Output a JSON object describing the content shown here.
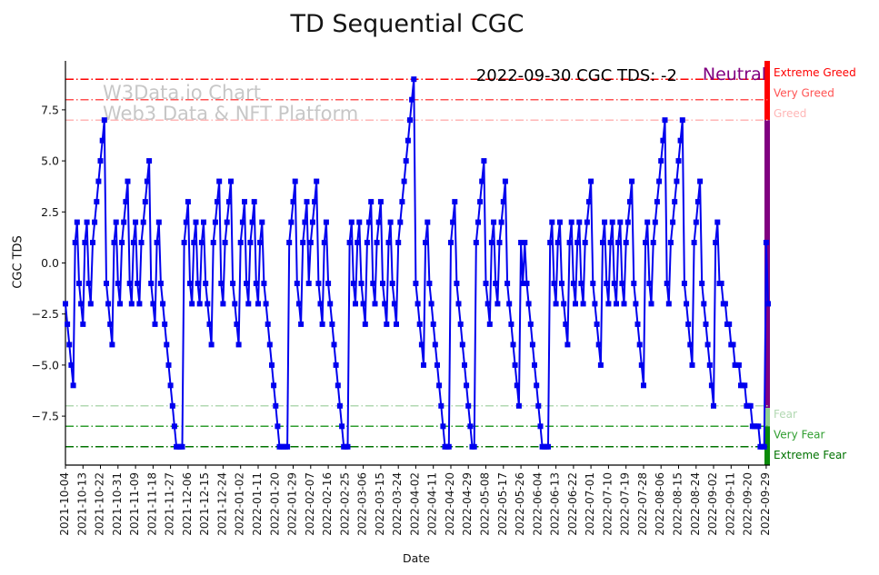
{
  "title": "TD Sequential CGC",
  "watermark": {
    "line1": "W3Data.io Chart",
    "line2": "Web3 Data & NFT Platform"
  },
  "annotation": {
    "text": "2022-09-30 CGC TDS: -2",
    "sentiment": "Neutral",
    "sentiment_color": "#800080"
  },
  "chart_data": {
    "type": "line",
    "title": "TD Sequential CGC",
    "xlabel": "Date",
    "ylabel": "CGC TDS",
    "series_name": "CGC TDS",
    "start_date": "2021-10-04",
    "end_date": "2022-09-30",
    "interval_days": 1,
    "line_color": "#0000ee",
    "marker": "square",
    "ylim": [
      -9.9,
      9.9
    ],
    "y_tick_values": [
      7.5,
      5.0,
      2.5,
      0.0,
      -2.5,
      -5.0,
      -7.5
    ],
    "y_tick_labels": [
      "7.5",
      "5.0",
      "2.5",
      "0.0",
      "−2.5",
      "−5.0",
      "−7.5"
    ],
    "x_tick_interval_days": 9,
    "x_tick_labels": [
      "2021-10-04",
      "2021-10-13",
      "2021-10-22",
      "2021-10-31",
      "2021-11-09",
      "2021-11-18",
      "2021-11-27",
      "2021-12-06",
      "2021-12-15",
      "2021-12-24",
      "2022-01-02",
      "2022-01-11",
      "2022-01-20",
      "2022-01-29",
      "2022-02-07",
      "2022-02-16",
      "2022-02-25",
      "2022-03-06",
      "2022-03-15",
      "2022-03-24",
      "2022-04-02",
      "2022-04-11",
      "2022-04-20",
      "2022-04-29",
      "2022-05-08",
      "2022-05-17",
      "2022-05-26",
      "2022-06-04",
      "2022-06-13",
      "2022-06-22",
      "2022-07-01",
      "2022-07-10",
      "2022-07-19",
      "2022-07-28",
      "2022-08-06",
      "2022-08-15",
      "2022-08-24",
      "2022-09-02",
      "2022-09-11",
      "2022-09-20",
      "2022-09-29"
    ],
    "thresholds": [
      {
        "value": 9,
        "label": "Extreme Greed",
        "color": "#fe0000"
      },
      {
        "value": 8,
        "label": "Very Greed",
        "color": "#ff5252"
      },
      {
        "value": 7,
        "label": "Greed",
        "color": "#ffb6b6"
      },
      {
        "value": -7,
        "label": "Fear",
        "color": "#b2d8b2"
      },
      {
        "value": -8,
        "label": "Very Fear",
        "color": "#2f9e2f"
      },
      {
        "value": -9,
        "label": "Extreme Fear",
        "color": "#007200"
      }
    ],
    "zone_bar": [
      {
        "from": 9.9,
        "to": 7.0,
        "color": "#fe0000"
      },
      {
        "from": 7.0,
        "to": -7.1,
        "color": "#800080"
      },
      {
        "from": -7.1,
        "to": -8.0,
        "color": "#8fcf8f"
      },
      {
        "from": -8.0,
        "to": -9.9,
        "color": "#0a8a0a"
      }
    ],
    "values": [
      -2,
      -3,
      -4,
      -5,
      -6,
      1,
      2,
      -1,
      -2,
      -3,
      1,
      2,
      -1,
      -2,
      1,
      2,
      3,
      4,
      5,
      6,
      7,
      -1,
      -2,
      -3,
      -4,
      1,
      2,
      -1,
      -2,
      1,
      2,
      3,
      4,
      -1,
      -2,
      1,
      2,
      -1,
      -2,
      1,
      2,
      3,
      4,
      5,
      -1,
      -2,
      -3,
      1,
      2,
      -1,
      -2,
      -3,
      -4,
      -5,
      -6,
      -7,
      -8,
      -9,
      -9,
      -9,
      -9,
      1,
      2,
      3,
      -1,
      -2,
      1,
      2,
      -1,
      -2,
      1,
      2,
      -1,
      -2,
      -3,
      -4,
      1,
      2,
      3,
      4,
      -1,
      -2,
      1,
      2,
      3,
      4,
      -1,
      -2,
      -3,
      -4,
      1,
      2,
      3,
      -1,
      -2,
      1,
      2,
      3,
      -1,
      -2,
      1,
      2,
      -1,
      -2,
      -3,
      -4,
      -5,
      -6,
      -7,
      -8,
      -9,
      -9,
      -9,
      -9,
      -9,
      1,
      2,
      3,
      4,
      -1,
      -2,
      -3,
      1,
      2,
      3,
      -1,
      1,
      2,
      3,
      4,
      -1,
      -2,
      -3,
      1,
      2,
      -1,
      -2,
      -3,
      -4,
      -5,
      -6,
      -7,
      -8,
      -9,
      -9,
      -9,
      1,
      2,
      -1,
      -2,
      1,
      2,
      -1,
      -2,
      -3,
      1,
      2,
      3,
      -1,
      -2,
      1,
      2,
      3,
      -1,
      -2,
      -3,
      1,
      2,
      -1,
      -2,
      -3,
      1,
      2,
      3,
      4,
      5,
      6,
      7,
      8,
      9,
      -1,
      -2,
      -3,
      -4,
      -5,
      1,
      2,
      -1,
      -2,
      -3,
      -4,
      -5,
      -6,
      -7,
      -8,
      -9,
      -9,
      -9,
      1,
      2,
      3,
      -1,
      -2,
      -3,
      -4,
      -5,
      -6,
      -7,
      -8,
      -9,
      -9,
      1,
      2,
      3,
      4,
      5,
      -1,
      -2,
      -3,
      1,
      2,
      -1,
      -2,
      1,
      2,
      3,
      4,
      -1,
      -2,
      -3,
      -4,
      -5,
      -6,
      -7,
      1,
      -1,
      1,
      -1,
      -2,
      -3,
      -4,
      -5,
      -6,
      -7,
      -8,
      -9,
      -9,
      -9,
      -9,
      1,
      2,
      -1,
      -2,
      1,
      2,
      -1,
      -2,
      -3,
      -4,
      1,
      2,
      -1,
      -2,
      1,
      2,
      -1,
      -2,
      1,
      2,
      3,
      4,
      -1,
      -2,
      -3,
      -4,
      -5,
      1,
      2,
      -1,
      -2,
      1,
      2,
      -1,
      -2,
      1,
      2,
      -1,
      -2,
      1,
      2,
      3,
      4,
      -1,
      -2,
      -3,
      -4,
      -5,
      -6,
      1,
      2,
      -1,
      -2,
      1,
      2,
      3,
      4,
      5,
      6,
      7,
      -1,
      -2,
      1,
      2,
      3,
      4,
      5,
      6,
      7,
      -1,
      -2,
      -3,
      -4,
      -5,
      1,
      2,
      3,
      4,
      -1,
      -2,
      -3,
      -4,
      -5,
      -6,
      -7,
      1,
      2,
      -1,
      -1,
      -2,
      -2,
      -3,
      -3,
      -4,
      -4,
      -5,
      -5,
      -5,
      -6,
      -6,
      -6,
      -7,
      -7,
      -7,
      -8,
      -8,
      -8,
      -8,
      -9,
      -9,
      -9,
      1,
      -2
    ]
  }
}
